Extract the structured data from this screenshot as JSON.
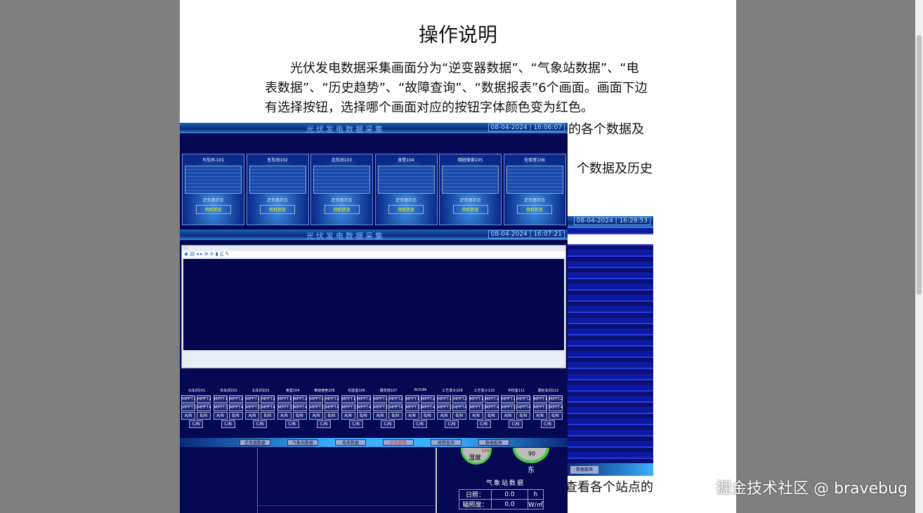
{
  "article": {
    "title": "操作说明",
    "paragraph1": "光伏发电数据采集画面分为“逆变器数据”、“气象站数据”、“电表数据”、“历史趋势”、“故障查询”、“数据报表”6个画面。画面下边有选择按钮，选择哪个画面对应的按钮字体颜色变为红色。",
    "fragment_line4": "的各个数据及",
    "fragment_line6": "个数据及历史",
    "fragment_bottom": "查看各个站点的"
  },
  "screens": {
    "app_title": "光伏发电数据采集",
    "inverter": {
      "datetime": "08-04-2024 | 16:06:07",
      "status_label": "逆变器状态",
      "panels": [
        {
          "name": "马车间-101",
          "status": "待机状态"
        },
        {
          "name": "东车间102",
          "status": "待机状态"
        },
        {
          "name": "北车间103",
          "status": "待机状态"
        },
        {
          "name": "食堂104",
          "status": "待机状态"
        },
        {
          "name": "倒班宿舍105",
          "status": "待机状态"
        },
        {
          "name": "化验室106",
          "status": "待机状态"
        }
      ]
    },
    "background_screen": {
      "datetime": "08-04-2024 | 16:28:53",
      "report_button": "数据报表"
    },
    "history": {
      "datetime": "08-04-2024 | 16:07:21",
      "stations": [
        "马车间101",
        "东车间102",
        "北车间103",
        "食堂104",
        "倒班宿舍105",
        "化验室106",
        "展览馆107",
        "6t3189",
        "工艺变大109",
        "工艺变小110",
        "中控室111",
        "钢丝车间112"
      ],
      "station_buttons": [
        "MPPT1",
        "MPPT2",
        "MPPT3",
        "MPPT4",
        "A/N",
        "B/N",
        "C/N"
      ],
      "nav": [
        {
          "label": "逆变器数据",
          "active": false
        },
        {
          "label": "气象站数据",
          "active": false
        },
        {
          "label": "电表数据",
          "active": false
        },
        {
          "label": "历史趋势",
          "active": true
        },
        {
          "label": "故障查询",
          "active": false
        },
        {
          "label": "数据报表",
          "active": false
        }
      ]
    },
    "weather": {
      "humidity_gauge": "湿度",
      "humidity_max": "100",
      "wind_value": "90",
      "wind_direction": "东",
      "table_title": "气象站数据",
      "rows": [
        {
          "label": "日照：",
          "value": "0.0",
          "unit": "h"
        },
        {
          "label": "辐照度：",
          "value": "0.0",
          "unit": "W/㎡"
        }
      ]
    }
  },
  "watermark": "掘金技术社区 @ bravebug",
  "colors": {
    "active_nav": "#ff2020",
    "screen_bg": "#050852",
    "page_bg": "#7f7f7f"
  }
}
